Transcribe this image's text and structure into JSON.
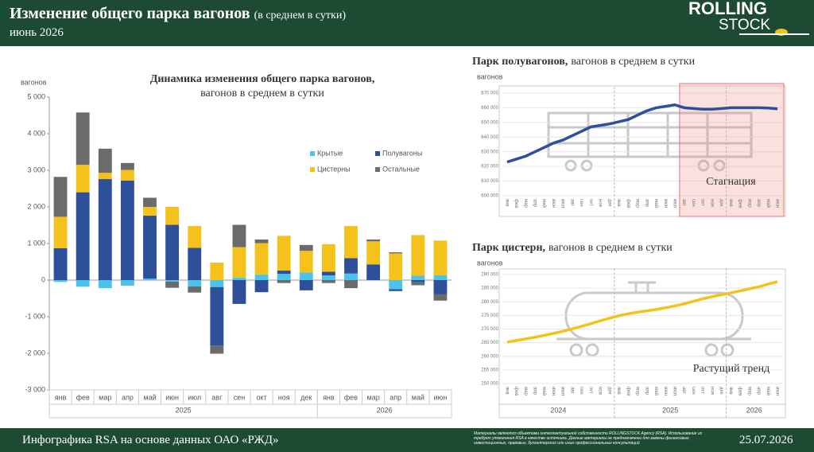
{
  "header": {
    "title": "Изменение общего парка вагонов",
    "title_note": "(в среднем в сутки)",
    "period": "июнь 2026",
    "logo": [
      "ROLLING",
      "STOCK"
    ]
  },
  "footer": {
    "source": "Инфографика RSA на основе данных ОАО «РЖД»",
    "disclaimer": "Материалы являются объектами интеллектуальной собственности ROLLINGSTOCK Agency (RSA). Использование их требует упоминания RSA в качестве источника. Данные материалы не предназначены для замены финансовых, инвестиционных, правовых, бухгалтерских или иных профессиональных консультаций",
    "date": "25.07.2026"
  },
  "chart_data": [
    {
      "type": "bar",
      "title": "Динамика изменения общего парка вагонов,",
      "subtitle": "вагонов в среднем в сутки",
      "y_label": "вагонов",
      "categories": [
        "янв",
        "фев",
        "мар",
        "апр",
        "май",
        "июн",
        "июл",
        "авг",
        "сен",
        "окт",
        "ноя",
        "дек",
        "янв",
        "фев",
        "мар",
        "апр",
        "май",
        "июн"
      ],
      "years": [
        "2025",
        "2026"
      ],
      "series": [
        {
          "name": "Крытые",
          "color": "#4cc3ea",
          "values": [
            -50,
            -180,
            -220,
            -150,
            40,
            -40,
            -170,
            -190,
            70,
            150,
            170,
            210,
            130,
            180,
            0,
            -250,
            120,
            130
          ]
        },
        {
          "name": "Полувагоны",
          "color": "#2e4f9a",
          "values": [
            870,
            2400,
            2760,
            2720,
            1720,
            1510,
            880,
            -1600,
            -650,
            -330,
            90,
            -280,
            100,
            420,
            430,
            -50,
            -60,
            -390
          ]
        },
        {
          "name": "Цистерны",
          "color": "#f5c21b",
          "values": [
            860,
            750,
            170,
            290,
            240,
            490,
            600,
            480,
            830,
            860,
            950,
            590,
            750,
            880,
            630,
            730,
            1110,
            950
          ]
        },
        {
          "name": "Остальные",
          "color": "#6b6b6b",
          "values": [
            1090,
            1430,
            660,
            190,
            250,
            -170,
            -170,
            -220,
            610,
            100,
            -80,
            160,
            -80,
            -220,
            50,
            30,
            -80,
            -170
          ]
        }
      ],
      "ylim": [
        -3000,
        5000
      ],
      "yticks": [
        {
          "value": -3000,
          "label": "-3 000"
        },
        {
          "value": -2000,
          "label": "-2 000"
        },
        {
          "value": -1000,
          "label": "-1 000"
        },
        0,
        {
          "value": 1000,
          "label": "1 000"
        },
        {
          "value": 2000,
          "label": "2 000"
        },
        {
          "value": 3000,
          "label": "3 000"
        },
        {
          "value": 4000,
          "label": "4 000"
        },
        {
          "value": 5000,
          "label": "5 000"
        }
      ],
      "grid": false
    },
    {
      "type": "line",
      "title": "Парк полувагонов,",
      "subtitle": "вагонов в среднем в сутки",
      "y_label": "вагонов",
      "color": "#2e4f9a",
      "categories": [
        "янв",
        "фев",
        "мар",
        "апр",
        "май",
        "июн",
        "июл",
        "авг",
        "сен",
        "окт",
        "ноя",
        "дек",
        "янв",
        "фев",
        "мар",
        "апр",
        "май",
        "июн",
        "июл",
        "авг",
        "сен",
        "окт",
        "ноя",
        "дек",
        "янв",
        "фев",
        "мар",
        "апр",
        "май",
        "июн"
      ],
      "values": [
        623000,
        625000,
        627000,
        630000,
        633000,
        636000,
        638000,
        641000,
        644000,
        647000,
        648000,
        649000,
        650500,
        652000,
        655000,
        658000,
        660000,
        661000,
        662000,
        660000,
        659500,
        659000,
        659000,
        659500,
        660000,
        660000,
        660000,
        660000,
        659800,
        659300
      ],
      "highlight": {
        "label": "Стагнация",
        "start": 19,
        "end": 29
      },
      "ylim": [
        600000,
        670000
      ],
      "yticks": [
        {
          "value": 600000,
          "label": "600 000"
        },
        {
          "value": 610000,
          "label": "610 000"
        },
        {
          "value": 620000,
          "label": "620 000"
        },
        {
          "value": 630000,
          "label": "630 000"
        },
        {
          "value": 640000,
          "label": "640 000"
        },
        {
          "value": 650000,
          "label": "650 000"
        },
        {
          "value": 660000,
          "label": "660 000"
        },
        {
          "value": 670000,
          "label": "670 000"
        }
      ],
      "grid": true
    },
    {
      "type": "line",
      "title": "Парк цистерн,",
      "subtitle": "вагонов в среднем в сутки",
      "y_label": "вагонов",
      "color": "#f5c21b",
      "categories": [
        "янв",
        "фев",
        "мар",
        "апр",
        "май",
        "июн",
        "июл",
        "авг",
        "сен",
        "окт",
        "ноя",
        "дек",
        "янв",
        "фев",
        "мар",
        "апр",
        "май",
        "июн",
        "июл",
        "авг",
        "сен",
        "окт",
        "ноя",
        "дек",
        "янв",
        "фев",
        "мар",
        "апр",
        "май",
        "июн"
      ],
      "years": [
        "2024",
        "2025",
        "2026"
      ],
      "values": [
        265200,
        265800,
        266400,
        267000,
        267700,
        268400,
        269200,
        270100,
        271000,
        272000,
        273000,
        274000,
        274900,
        275600,
        276200,
        276700,
        277200,
        277800,
        278500,
        279300,
        280200,
        281100,
        281900,
        282600,
        283300,
        284000,
        284800,
        285500,
        286500,
        287400
      ],
      "annotation": "Растущий тренд",
      "ylim": [
        250000,
        290000
      ],
      "yticks": [
        {
          "value": 250000,
          "label": "250 000"
        },
        {
          "value": 255000,
          "label": "255 000"
        },
        {
          "value": 260000,
          "label": "260 000"
        },
        {
          "value": 265000,
          "label": "265 000"
        },
        {
          "value": 270000,
          "label": "270 000"
        },
        {
          "value": 275000,
          "label": "275 000"
        },
        {
          "value": 280000,
          "label": "280 000"
        },
        {
          "value": 285000,
          "label": "285 000"
        },
        {
          "value": 290000,
          "label": "290 000"
        }
      ],
      "grid": true
    }
  ]
}
